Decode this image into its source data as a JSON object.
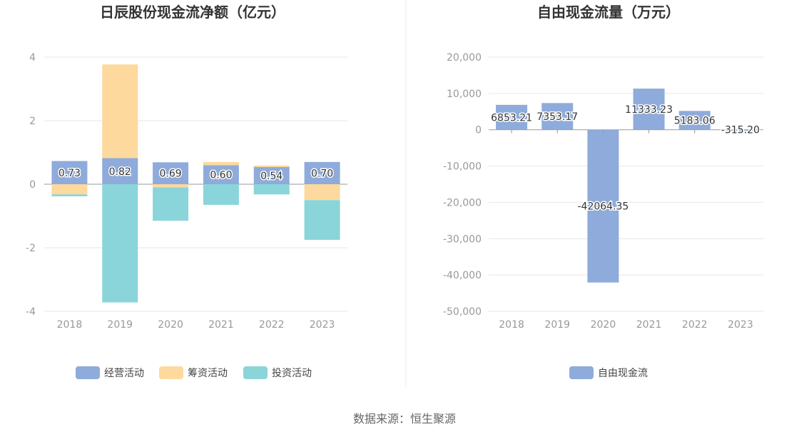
{
  "colors": {
    "operating": "#8eabdb",
    "financing": "#fdd99d",
    "investing": "#8ad5d9",
    "free_cash": "#8eabdb",
    "grid": "#e6e6ee",
    "axis": "#999999"
  },
  "chart_data": [
    {
      "type": "bar",
      "stacked": true,
      "title": "日辰股份现金流净额（亿元）",
      "categories": [
        "2018",
        "2019",
        "2020",
        "2021",
        "2022",
        "2023"
      ],
      "series": [
        {
          "name": "经营活动",
          "values": [
            0.73,
            0.82,
            0.69,
            0.6,
            0.54,
            0.7
          ],
          "labels": [
            "0.73",
            "0.82",
            "0.69",
            "0.60",
            "0.54",
            "0.70"
          ]
        },
        {
          "name": "筹资活动",
          "values": [
            -0.32,
            2.95,
            -0.1,
            0.1,
            0.05,
            -0.5
          ]
        },
        {
          "name": "投资活动",
          "values": [
            -0.06,
            -3.72,
            -1.05,
            -0.65,
            -0.32,
            -1.25
          ]
        }
      ],
      "ylim": [
        -4,
        4
      ],
      "yticks": [
        -4,
        -2,
        0,
        2,
        4
      ],
      "ytick_labels": [
        "-4",
        "-2",
        "0",
        "2",
        "4"
      ],
      "grid": true,
      "legend_position": "bottom"
    },
    {
      "type": "bar",
      "title": "自由现金流量（万元）",
      "categories": [
        "2018",
        "2019",
        "2020",
        "2021",
        "2022",
        "2023"
      ],
      "series": [
        {
          "name": "自由现金流",
          "values": [
            6853.21,
            7353.17,
            -42064.35,
            11333.23,
            5183.06,
            -315.2
          ],
          "labels": [
            "6853.21",
            "7353.17",
            "-42064.35",
            "11333.23",
            "5183.06",
            "-315.20"
          ]
        }
      ],
      "ylim": [
        -50000,
        20000
      ],
      "yticks": [
        -50000,
        -40000,
        -30000,
        -20000,
        -10000,
        0,
        10000,
        20000
      ],
      "ytick_labels": [
        "-50,000",
        "-40,000",
        "-30,000",
        "-20,000",
        "-10,000",
        "0",
        "10,000",
        "20,000"
      ],
      "grid": true,
      "legend_position": "bottom"
    }
  ],
  "footer": {
    "source": "数据来源：恒生聚源"
  }
}
